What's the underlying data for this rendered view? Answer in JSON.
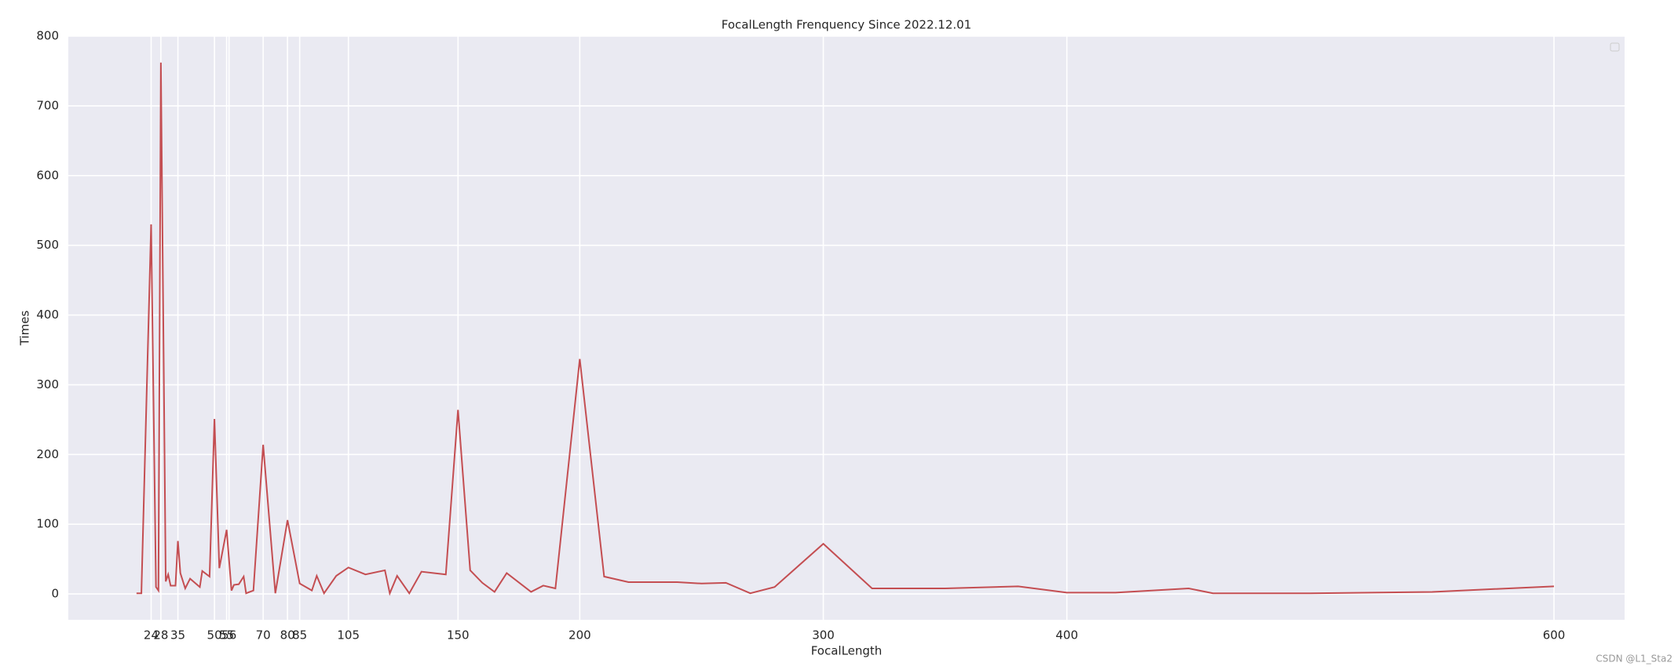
{
  "chart_data": {
    "type": "line",
    "title": "FocalLength Frenquency Since 2022.12.01",
    "xlabel": "FocalLength",
    "ylabel": "Times",
    "watermark": "CSDN @L1_Sta2",
    "x": [
      18,
      20,
      24,
      26,
      27,
      28,
      30,
      31,
      32,
      34,
      35,
      36,
      38,
      40,
      44,
      45,
      48,
      50,
      52,
      55,
      57,
      58,
      60,
      62,
      63,
      66,
      70,
      75,
      80,
      85,
      90,
      92,
      95,
      100,
      105,
      112,
      120,
      122,
      125,
      130,
      135,
      145,
      150,
      155,
      160,
      165,
      170,
      180,
      185,
      190,
      200,
      210,
      220,
      240,
      250,
      260,
      270,
      280,
      300,
      320,
      350,
      380,
      400,
      420,
      450,
      460,
      500,
      550,
      600
    ],
    "series": [
      {
        "name": "Times",
        "color": "#c44e52",
        "values": [
          1,
          1,
          530,
          10,
          5,
          762,
          18,
          28,
          12,
          12,
          76,
          30,
          8,
          22,
          10,
          33,
          25,
          251,
          37,
          92,
          5,
          13,
          14,
          25,
          1,
          5,
          214,
          1,
          106,
          15,
          5,
          26,
          1,
          26,
          38,
          28,
          34,
          1,
          26,
          1,
          32,
          28,
          264,
          34,
          16,
          3,
          30,
          3,
          12,
          8,
          337,
          25,
          17,
          17,
          15,
          16,
          1,
          10,
          72,
          8,
          8,
          11,
          2,
          2,
          8,
          1,
          1,
          3,
          11
        ]
      }
    ],
    "xlim": [
      -10,
      629
    ],
    "ylim": [
      -37,
      800
    ],
    "xticks": [
      24,
      28,
      35,
      50,
      55,
      56,
      70,
      80,
      85,
      105,
      150,
      200,
      300,
      400,
      600
    ],
    "yticks": [
      0,
      100,
      200,
      300,
      400,
      500,
      600,
      700,
      800
    ],
    "grid": true
  }
}
